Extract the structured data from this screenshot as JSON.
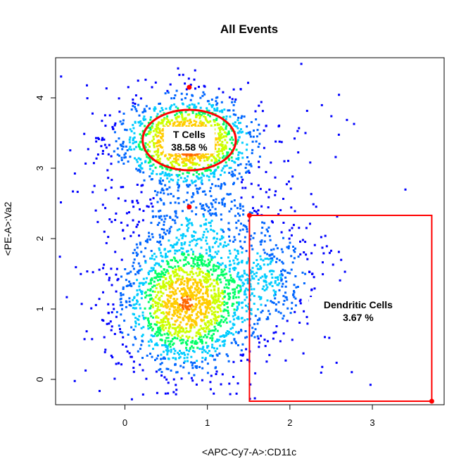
{
  "chart_data": {
    "type": "scatter",
    "title": "All Events",
    "xlabel": "<APC-Cy7-A>:CD11c",
    "ylabel": "<PE-A>:Va2",
    "xlim": [
      -0.84,
      3.87
    ],
    "ylim": [
      -0.36,
      4.57
    ],
    "xticks": [
      0,
      1,
      2,
      3
    ],
    "yticks": [
      0,
      1,
      2,
      3,
      4
    ],
    "density_colors": [
      "#0000ff",
      "#0066ff",
      "#00ccff",
      "#00ff66",
      "#ccff00",
      "#ffcc00",
      "#ff6600"
    ],
    "gate_color": "#ff0000",
    "populations": [
      {
        "cx": 0.76,
        "cy": 3.38,
        "sx": 0.42,
        "sy": 0.33,
        "weight": 0.38
      },
      {
        "cx": 0.74,
        "cy": 1.08,
        "sx": 0.4,
        "sy": 0.5,
        "weight": 0.46
      },
      {
        "cx": 1.7,
        "cy": 1.45,
        "sx": 0.35,
        "sy": 0.45,
        "weight": 0.1
      },
      {
        "cx": 0.9,
        "cy": 2.25,
        "sx": 0.45,
        "sy": 0.28,
        "weight": 0.06
      }
    ],
    "gates": [
      {
        "name": "T Cells",
        "shape": "ellipse",
        "label": "T Cells",
        "value": "38.58 %",
        "center": [
          0.78,
          3.4
        ],
        "radii": [
          1.13,
          0.86
        ],
        "handles": [
          [
            0.78,
            4.15
          ],
          [
            0.78,
            2.45
          ]
        ]
      },
      {
        "name": "Dendritic Cells",
        "shape": "rectangle",
        "label": "Dendritic Cells",
        "value": "3.67 %",
        "x": [
          1.51,
          3.72
        ],
        "y": [
          -0.31,
          2.33
        ],
        "handles": [
          [
            1.51,
            2.33
          ],
          [
            3.72,
            -0.31
          ]
        ]
      }
    ]
  }
}
